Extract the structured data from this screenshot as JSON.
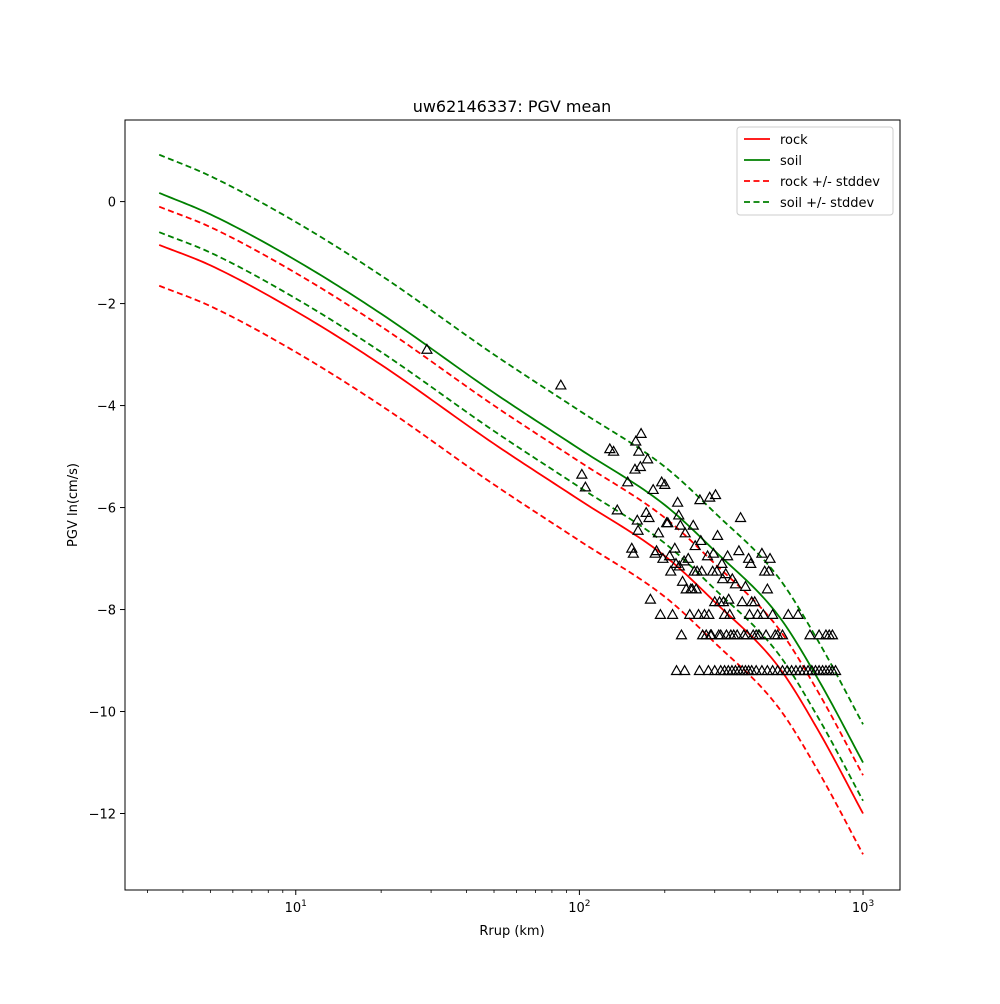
{
  "chart_data": {
    "type": "scatter",
    "title": "uw62146337: PGV mean",
    "xlabel": "Rrup (km)",
    "ylabel": "PGV ln(cm/s)",
    "xscale": "log",
    "xlim": [
      2.5,
      1350
    ],
    "ylim": [
      -13.5,
      1.6
    ],
    "x_ticks": [
      {
        "value": 10,
        "base": "10",
        "exp": "1"
      },
      {
        "value": 100,
        "base": "10",
        "exp": "2"
      },
      {
        "value": 1000,
        "base": "10",
        "exp": "3"
      }
    ],
    "y_ticks": [
      0,
      -2,
      -4,
      -6,
      -8,
      -10,
      -12
    ],
    "y_tick_labels": [
      "0",
      "−2",
      "−4",
      "−6",
      "−8",
      "−10",
      "−12"
    ],
    "grid": false,
    "legend_position": "top-right",
    "colors": {
      "rock": "#ff0000",
      "soil": "#008000",
      "observed": "#000000"
    },
    "series": [
      {
        "name": "rock",
        "style": "solid",
        "color": "#ff0000",
        "x": [
          3.3,
          5,
          10,
          20,
          50,
          100,
          200,
          300,
          500,
          700,
          1000
        ],
        "y": [
          -0.85,
          -1.25,
          -2.15,
          -3.2,
          -4.75,
          -5.85,
          -6.95,
          -7.85,
          -9.1,
          -10.4,
          -12.0
        ]
      },
      {
        "name": "soil",
        "style": "solid",
        "color": "#008000",
        "x": [
          3.3,
          5,
          10,
          20,
          50,
          100,
          200,
          300,
          500,
          700,
          1000
        ],
        "y": [
          0.17,
          -0.25,
          -1.15,
          -2.2,
          -3.75,
          -4.85,
          -5.95,
          -6.85,
          -8.1,
          -9.4,
          -11.0
        ]
      },
      {
        "name": "rock +/- stddev",
        "style": "dashed",
        "color": "#ff0000",
        "x": [
          3.3,
          5,
          10,
          20,
          50,
          100,
          200,
          300,
          500,
          700,
          1000
        ],
        "y": [
          -0.1,
          -0.5,
          -1.4,
          -2.45,
          -4.0,
          -5.1,
          -6.2,
          -7.1,
          -8.35,
          -9.65,
          -11.25
        ],
        "y_lower": [
          -1.65,
          -2.05,
          -2.95,
          -4.0,
          -5.55,
          -6.65,
          -7.75,
          -8.65,
          -9.9,
          -11.2,
          -12.8
        ]
      },
      {
        "name": "soil +/- stddev",
        "style": "dashed",
        "color": "#008000",
        "x": [
          3.3,
          5,
          10,
          20,
          50,
          100,
          200,
          300,
          500,
          700,
          1000
        ],
        "y": [
          0.92,
          0.5,
          -0.4,
          -1.45,
          -3.0,
          -4.1,
          -5.2,
          -6.1,
          -7.35,
          -8.65,
          -10.25
        ],
        "y_lower": [
          -0.6,
          -1.0,
          -1.9,
          -2.95,
          -4.5,
          -5.6,
          -6.7,
          -7.6,
          -8.85,
          -10.15,
          -11.75
        ]
      },
      {
        "name": "observed",
        "style": "triangle-markers",
        "color": "#000000",
        "points": [
          [
            29,
            -2.9
          ],
          [
            86,
            -3.6
          ],
          [
            102,
            -5.35
          ],
          [
            105,
            -5.6
          ],
          [
            128,
            -4.85
          ],
          [
            132,
            -4.9
          ],
          [
            136,
            -6.05
          ],
          [
            148,
            -5.5
          ],
          [
            153,
            -6.8
          ],
          [
            155,
            -6.9
          ],
          [
            157,
            -5.25
          ],
          [
            158,
            -4.7
          ],
          [
            160,
            -6.25
          ],
          [
            161,
            -6.45
          ],
          [
            162,
            -4.9
          ],
          [
            164,
            -5.2
          ],
          [
            165,
            -4.55
          ],
          [
            172,
            -6.1
          ],
          [
            174,
            -5.05
          ],
          [
            176,
            -6.2
          ],
          [
            178,
            -7.8
          ],
          [
            182,
            -5.65
          ],
          [
            185,
            -6.9
          ],
          [
            187,
            -6.85
          ],
          [
            190,
            -6.5
          ],
          [
            193,
            -8.1
          ],
          [
            195,
            -5.5
          ],
          [
            197,
            -7.0
          ],
          [
            200,
            -5.55
          ],
          [
            203,
            -6.3
          ],
          [
            205,
            -6.3
          ],
          [
            208,
            -6.95
          ],
          [
            210,
            -7.25
          ],
          [
            213,
            -8.1
          ],
          [
            217,
            -6.8
          ],
          [
            219,
            -7.1
          ],
          [
            222,
            -5.9
          ],
          [
            224,
            -6.15
          ],
          [
            225,
            -7.15
          ],
          [
            227,
            -6.35
          ],
          [
            229,
            -8.5
          ],
          [
            231,
            -7.45
          ],
          [
            234,
            -7.05
          ],
          [
            236,
            -6.5
          ],
          [
            238,
            -7.6
          ],
          [
            242,
            -7.0
          ],
          [
            245,
            -8.1
          ],
          [
            247,
            -7.6
          ],
          [
            250,
            -7.6
          ],
          [
            252,
            -6.35
          ],
          [
            254,
            -7.25
          ],
          [
            256,
            -6.75
          ],
          [
            258,
            -7.6
          ],
          [
            260,
            -7.25
          ],
          [
            263,
            -8.1
          ],
          [
            266,
            -5.85
          ],
          [
            268,
            -6.65
          ],
          [
            270,
            -7.25
          ],
          [
            272,
            -8.5
          ],
          [
            276,
            -8.1
          ],
          [
            280,
            -8.5
          ],
          [
            283,
            -6.95
          ],
          [
            286,
            -8.1
          ],
          [
            288,
            -5.8
          ],
          [
            290,
            -8.5
          ],
          [
            292,
            -8.5
          ],
          [
            295,
            -7.25
          ],
          [
            297,
            -6.9
          ],
          [
            300,
            -7.85
          ],
          [
            302,
            -5.75
          ],
          [
            305,
            -7.25
          ],
          [
            307,
            -6.55
          ],
          [
            310,
            -8.5
          ],
          [
            312,
            -7.85
          ],
          [
            315,
            -8.5
          ],
          [
            318,
            -7.1
          ],
          [
            320,
            -7.4
          ],
          [
            322,
            -7.85
          ],
          [
            325,
            -8.1
          ],
          [
            328,
            -7.3
          ],
          [
            330,
            -8.5
          ],
          [
            333,
            -6.95
          ],
          [
            336,
            -7.8
          ],
          [
            339,
            -8.1
          ],
          [
            342,
            -8.5
          ],
          [
            346,
            -7.4
          ],
          [
            350,
            -8.5
          ],
          [
            355,
            -7.5
          ],
          [
            360,
            -8.5
          ],
          [
            365,
            -6.85
          ],
          [
            370,
            -6.2
          ],
          [
            375,
            -7.85
          ],
          [
            380,
            -8.5
          ],
          [
            385,
            -7.55
          ],
          [
            390,
            -8.5
          ],
          [
            395,
            -7.0
          ],
          [
            398,
            -8.1
          ],
          [
            402,
            -7.1
          ],
          [
            405,
            -7.85
          ],
          [
            410,
            -8.5
          ],
          [
            415,
            -7.85
          ],
          [
            420,
            -8.5
          ],
          [
            425,
            -8.1
          ],
          [
            430,
            -8.5
          ],
          [
            440,
            -6.9
          ],
          [
            445,
            -8.1
          ],
          [
            450,
            -7.25
          ],
          [
            455,
            -8.5
          ],
          [
            460,
            -7.6
          ],
          [
            465,
            -7.25
          ],
          [
            470,
            -7.0
          ],
          [
            480,
            -8.1
          ],
          [
            490,
            -8.5
          ],
          [
            500,
            -8.5
          ],
          [
            520,
            -8.5
          ],
          [
            545,
            -8.1
          ],
          [
            590,
            -8.1
          ],
          [
            650,
            -8.5
          ],
          [
            700,
            -8.5
          ],
          [
            740,
            -8.5
          ],
          [
            760,
            -8.5
          ],
          [
            780,
            -8.5
          ],
          [
            220,
            -9.2
          ],
          [
            235,
            -9.2
          ],
          [
            265,
            -9.2
          ],
          [
            285,
            -9.2
          ],
          [
            300,
            -9.2
          ],
          [
            315,
            -9.2
          ],
          [
            325,
            -9.2
          ],
          [
            335,
            -9.2
          ],
          [
            345,
            -9.2
          ],
          [
            355,
            -9.2
          ],
          [
            365,
            -9.2
          ],
          [
            375,
            -9.2
          ],
          [
            385,
            -9.2
          ],
          [
            395,
            -9.2
          ],
          [
            405,
            -9.2
          ],
          [
            420,
            -9.2
          ],
          [
            440,
            -9.2
          ],
          [
            460,
            -9.2
          ],
          [
            480,
            -9.2
          ],
          [
            500,
            -9.2
          ],
          [
            520,
            -9.2
          ],
          [
            540,
            -9.2
          ],
          [
            560,
            -9.2
          ],
          [
            580,
            -9.2
          ],
          [
            600,
            -9.2
          ],
          [
            620,
            -9.2
          ],
          [
            640,
            -9.2
          ],
          [
            660,
            -9.2
          ],
          [
            680,
            -9.2
          ],
          [
            700,
            -9.2
          ],
          [
            720,
            -9.2
          ],
          [
            740,
            -9.2
          ],
          [
            760,
            -9.2
          ],
          [
            780,
            -9.2
          ],
          [
            800,
            -9.2
          ]
        ]
      }
    ],
    "legend": [
      {
        "label": "rock",
        "style": "solid",
        "color": "#ff0000"
      },
      {
        "label": "soil",
        "style": "solid",
        "color": "#008000"
      },
      {
        "label": "rock +/- stddev",
        "style": "dashed",
        "color": "#ff0000"
      },
      {
        "label": "soil +/- stddev",
        "style": "dashed",
        "color": "#008000"
      }
    ]
  }
}
